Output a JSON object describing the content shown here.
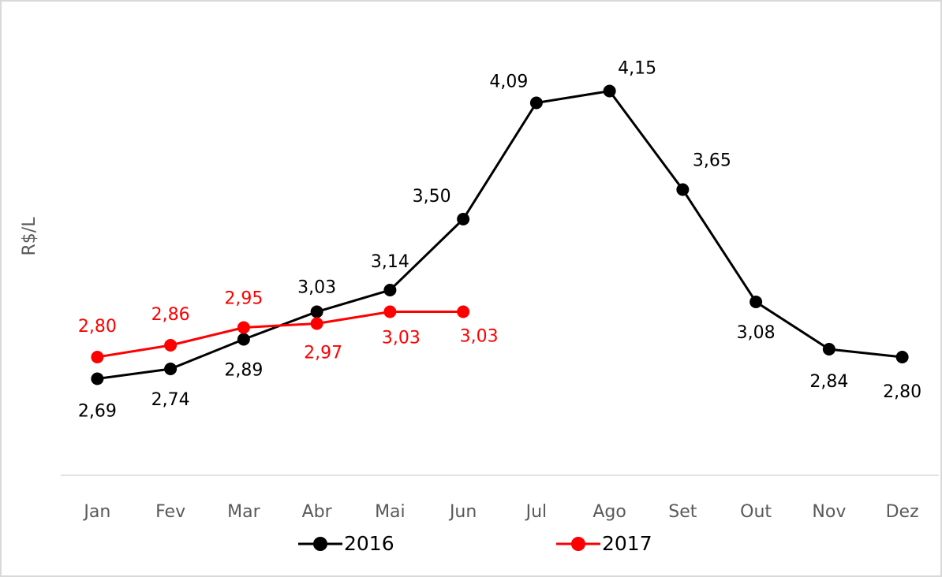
{
  "chart_data": {
    "type": "line",
    "y_label": "R$/L",
    "categories": [
      "Jan",
      "Fev",
      "Mar",
      "Abr",
      "Mai",
      "Jun",
      "Jul",
      "Ago",
      "Set",
      "Out",
      "Nov",
      "Dez"
    ],
    "series": [
      {
        "name": "2016",
        "color": "#000000",
        "values": [
          2.69,
          2.74,
          2.89,
          3.03,
          3.14,
          3.5,
          4.09,
          4.15,
          3.65,
          3.08,
          2.84,
          2.8
        ],
        "value_labels": [
          "2,69",
          "2,74",
          "2,89",
          "3,03",
          "3,14",
          "3,50",
          "4,09",
          "4,15",
          "3,65",
          "3,08",
          "2,84",
          "2,80"
        ]
      },
      {
        "name": "2017",
        "color": "#ff0000",
        "values": [
          2.8,
          2.86,
          2.95,
          2.97,
          3.03,
          3.03,
          null,
          null,
          null,
          null,
          null,
          null
        ],
        "value_labels": [
          "2,80",
          "2,86",
          "2,95",
          "2,97",
          "3,03",
          "3,03",
          null,
          null,
          null,
          null,
          null,
          null
        ]
      }
    ],
    "ylim": [
      2.2,
      4.4
    ],
    "grid": false,
    "legend": "bottom"
  }
}
